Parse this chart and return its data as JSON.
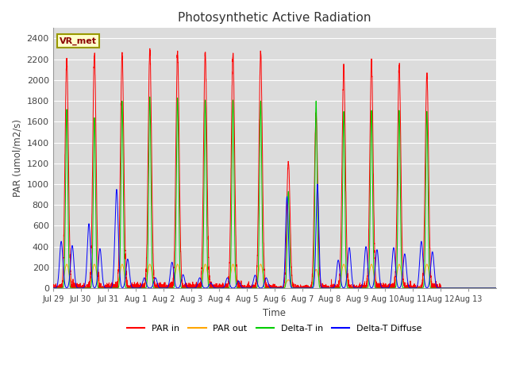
{
  "title": "Photosynthetic Active Radiation",
  "ylabel": "PAR (umol/m2/s)",
  "xlabel": "Time",
  "annotation": "VR_met",
  "ylim": [
    0,
    2500
  ],
  "background_color": "#dcdcdc",
  "plot_bg_color": "#dcdcdc",
  "colors": {
    "PAR in": "#ff0000",
    "PAR out": "#ffa500",
    "Delta-T in": "#00cc00",
    "Delta-T Diffuse": "#0000ff"
  },
  "xtick_labels": [
    "Jul 29",
    "Jul 30",
    "Jul 31",
    "Aug 1",
    "Aug 2",
    "Aug 3",
    "Aug 4",
    "Aug 5",
    "Aug 6",
    "Aug 7",
    "Aug 8",
    "Aug 9",
    "Aug 10",
    "Aug 11",
    "Aug 12",
    "Aug 13"
  ],
  "num_days": 16,
  "pts_per_day": 288,
  "day_peaks_PAR_in": [
    2200,
    2250,
    2260,
    2280,
    2260,
    2260,
    2250,
    2260,
    1220,
    1660,
    2130,
    2160,
    2140,
    2060,
    0,
    0
  ],
  "day_peaks_PAR_out": [
    230,
    230,
    230,
    230,
    230,
    230,
    230,
    230,
    80,
    180,
    230,
    230,
    230,
    230,
    0,
    0
  ],
  "day_peaks_Delta_T_in": [
    1720,
    1640,
    1800,
    1840,
    1830,
    1810,
    1810,
    1800,
    930,
    1800,
    1700,
    1710,
    1710,
    1700,
    0,
    0
  ],
  "day_diffuse_morning": [
    450,
    620,
    950,
    100,
    250,
    100,
    100,
    125,
    880,
    0,
    270,
    400,
    390,
    450,
    0,
    0
  ],
  "day_diffuse_afternoon": [
    410,
    380,
    280,
    100,
    130,
    50,
    70,
    100,
    0,
    1000,
    390,
    370,
    330,
    350,
    0,
    0
  ]
}
